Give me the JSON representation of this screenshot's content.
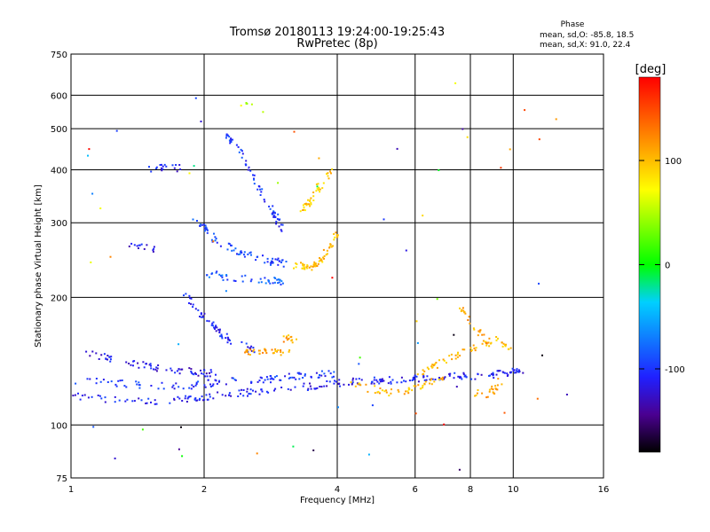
{
  "chart_data": {
    "type": "scatter",
    "title": "Tromsø 20180113 19:24:00-19:25:43",
    "subtitle": "RwPretec (8p)",
    "xlabel": "Frequency [MHz]",
    "ylabel": "Stationary phase Virtual Height [km]",
    "xscale": "log",
    "yscale": "log",
    "xlim": [
      1,
      16
    ],
    "ylim": [
      75,
      750
    ],
    "xticks": [
      1,
      2,
      4,
      6,
      8,
      10,
      16
    ],
    "yticks": [
      75,
      100,
      200,
      300,
      400,
      500,
      600,
      750
    ],
    "grid": true,
    "colorbar": {
      "label": "[deg]",
      "range": [
        -180,
        180
      ],
      "ticks": [
        100,
        0,
        -100
      ]
    },
    "stats": {
      "heading": "Phase",
      "line_o": "mean, sd,O: -85.8, 18.5",
      "line_x": "mean, sd,X:  91.0, 22.4"
    },
    "traces": [
      {
        "x": [
          1.0,
          1.3,
          1.7,
          2.0,
          2.5,
          3.0,
          3.5,
          4.0,
          4.8,
          5.5,
          6.5,
          7.5,
          8.5,
          9.5,
          10.5
        ],
        "y": [
          118,
          114,
          115,
          117,
          120,
          122,
          124,
          126,
          128,
          128,
          130,
          131,
          131,
          133,
          136
        ],
        "phase": -110,
        "n": 240
      },
      {
        "x": [
          1.0,
          1.4,
          1.8,
          2.2,
          2.8,
          3.3,
          4.0
        ],
        "y": [
          128,
          125,
          124,
          127,
          129,
          131,
          133
        ],
        "phase": -100,
        "n": 110
      },
      {
        "x": [
          1.05,
          1.3,
          1.6,
          1.9,
          2.1
        ],
        "y": [
          150,
          142,
          136,
          134,
          133
        ],
        "phase": -115,
        "n": 70
      },
      {
        "x": [
          1.8,
          1.95,
          2.1,
          2.3,
          2.6
        ],
        "y": [
          205,
          185,
          170,
          158,
          150
        ],
        "phase": -108,
        "n": 60
      },
      {
        "x": [
          1.9,
          2.1,
          2.4,
          2.8,
          3.1
        ],
        "y": [
          310,
          275,
          255,
          245,
          240
        ],
        "phase": -95,
        "n": 70
      },
      {
        "x": [
          2.0,
          2.2,
          2.5,
          2.8,
          3.0
        ],
        "y": [
          230,
          225,
          222,
          220,
          218
        ],
        "phase": -85,
        "n": 45
      },
      {
        "x": [
          2.2,
          2.4,
          2.6,
          2.8,
          3.0
        ],
        "y": [
          500,
          440,
          380,
          330,
          290
        ],
        "phase": -100,
        "n": 70
      },
      {
        "x": [
          1.5,
          1.6,
          1.75
        ],
        "y": [
          405,
          408,
          405
        ],
        "phase": -110,
        "n": 18
      },
      {
        "x": [
          1.35,
          1.45,
          1.55
        ],
        "y": [
          270,
          265,
          262
        ],
        "phase": -115,
        "n": 14
      },
      {
        "x": [
          3.2,
          3.4,
          3.6,
          3.8,
          4.0
        ],
        "y": [
          240,
          236,
          240,
          260,
          290
        ],
        "phase": 100,
        "n": 60
      },
      {
        "x": [
          3.3,
          3.5,
          3.7,
          3.9
        ],
        "y": [
          320,
          345,
          380,
          400
        ],
        "phase": 95,
        "n": 40
      },
      {
        "x": [
          2.45,
          2.7,
          2.9,
          3.1
        ],
        "y": [
          150,
          150,
          149,
          151
        ],
        "phase": 110,
        "n": 35
      },
      {
        "x": [
          3.0,
          3.1,
          3.2
        ],
        "y": [
          160,
          162,
          158
        ],
        "phase": 110,
        "n": 14
      },
      {
        "x": [
          4.3,
          4.8,
          5.2,
          5.8,
          6.2,
          7.0
        ],
        "y": [
          125,
          122,
          120,
          121,
          125,
          131
        ],
        "phase": 100,
        "n": 50
      },
      {
        "x": [
          6.0,
          6.6,
          7.2,
          8.0,
          8.6,
          9.2,
          9.8
        ],
        "y": [
          132,
          138,
          145,
          152,
          158,
          160,
          150
        ],
        "phase": 100,
        "n": 60
      },
      {
        "x": [
          7.6,
          8.0,
          8.4,
          8.8
        ],
        "y": [
          190,
          175,
          165,
          155
        ],
        "phase": 110,
        "n": 25
      },
      {
        "x": [
          8.2,
          8.6,
          9.0,
          9.4
        ],
        "y": [
          120,
          118,
          122,
          128
        ],
        "phase": 110,
        "n": 22
      },
      {
        "x": [
          2.4,
          2.6,
          2.8
        ],
        "y": [
          560,
          590,
          520
        ],
        "phase": 60,
        "n": 6
      }
    ]
  }
}
